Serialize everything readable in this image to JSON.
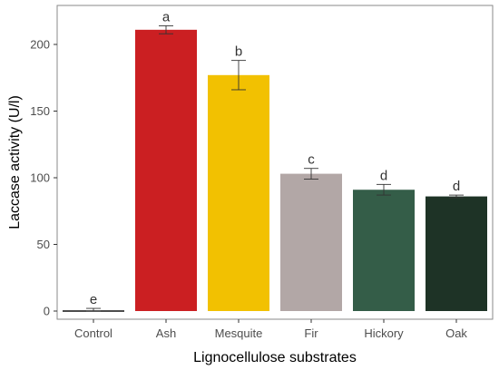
{
  "chart_data": {
    "type": "bar",
    "categories": [
      "Control",
      "Ash",
      "Mesquite",
      "Fir",
      "Hickory",
      "Oak"
    ],
    "values": [
      1,
      211,
      177,
      103,
      91,
      86
    ],
    "errors": [
      1,
      3,
      11,
      4,
      4,
      1
    ],
    "significance": [
      "e",
      "a",
      "b",
      "c",
      "d",
      "d"
    ],
    "colors": [
      "#111111",
      "#cb1f22",
      "#f2c101",
      "#b2a7a6",
      "#345d48",
      "#1e3326"
    ],
    "xlabel": "Lignocellulose substrates",
    "ylabel": "Laccase activity (U/l)",
    "ylim": [
      -5,
      230
    ],
    "yticks": [
      0,
      50,
      100,
      150,
      200
    ],
    "grid": false,
    "legend": "none"
  }
}
